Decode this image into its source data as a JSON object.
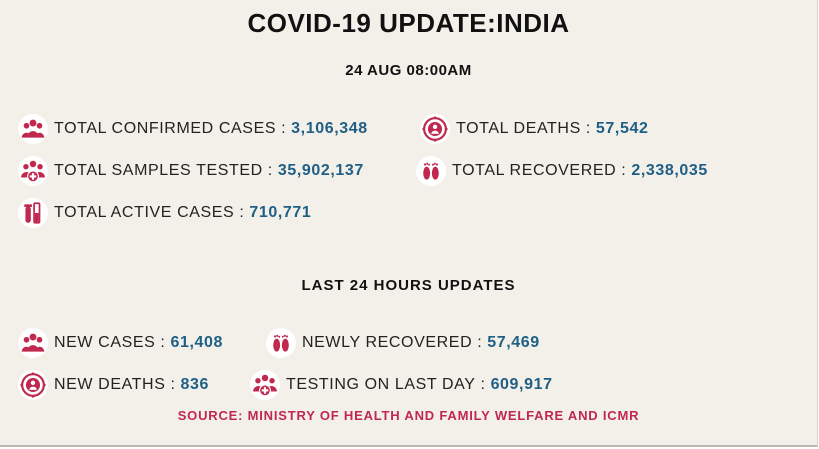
{
  "header": {
    "title": "COVID-19 UPDATE:INDIA",
    "timestamp": "24 AUG 08:00AM"
  },
  "totals": {
    "confirmed": {
      "label": "TOTAL CONFIRMED CASES",
      "value": "3,106,348",
      "icon": "people-group-icon"
    },
    "deaths": {
      "label": "TOTAL DEATHS",
      "value": "57,542",
      "icon": "virus-person-icon"
    },
    "samples": {
      "label": "TOTAL SAMPLES TESTED",
      "value": "35,902,137",
      "icon": "people-medical-cross-icon"
    },
    "recovered": {
      "label": "TOTAL RECOVERED",
      "value": "2,338,035",
      "icon": "footprints-icon"
    },
    "active": {
      "label": "TOTAL ACTIVE CASES",
      "value": "710,771",
      "icon": "test-tube-icon"
    }
  },
  "last24": {
    "title": "LAST 24 HOURS UPDATES",
    "new_cases": {
      "label": "NEW CASES",
      "value": "61,408",
      "icon": "people-group-icon"
    },
    "newly_recovered": {
      "label": "NEWLY RECOVERED",
      "value": "57,469",
      "icon": "footprints-icon"
    },
    "new_deaths": {
      "label": "NEW DEATHS",
      "value": "836",
      "icon": "virus-person-icon"
    },
    "testing": {
      "label": "TESTING ON LAST DAY",
      "value": "609,917",
      "icon": "people-medical-cross-icon"
    }
  },
  "source": "SOURCE: MINISTRY OF HEALTH AND FAMILY WELFARE AND ICMR",
  "colors": {
    "background": "#f2f0e9",
    "value": "#1f5f86",
    "icon": "#c0284e",
    "source": "#c0284e"
  }
}
